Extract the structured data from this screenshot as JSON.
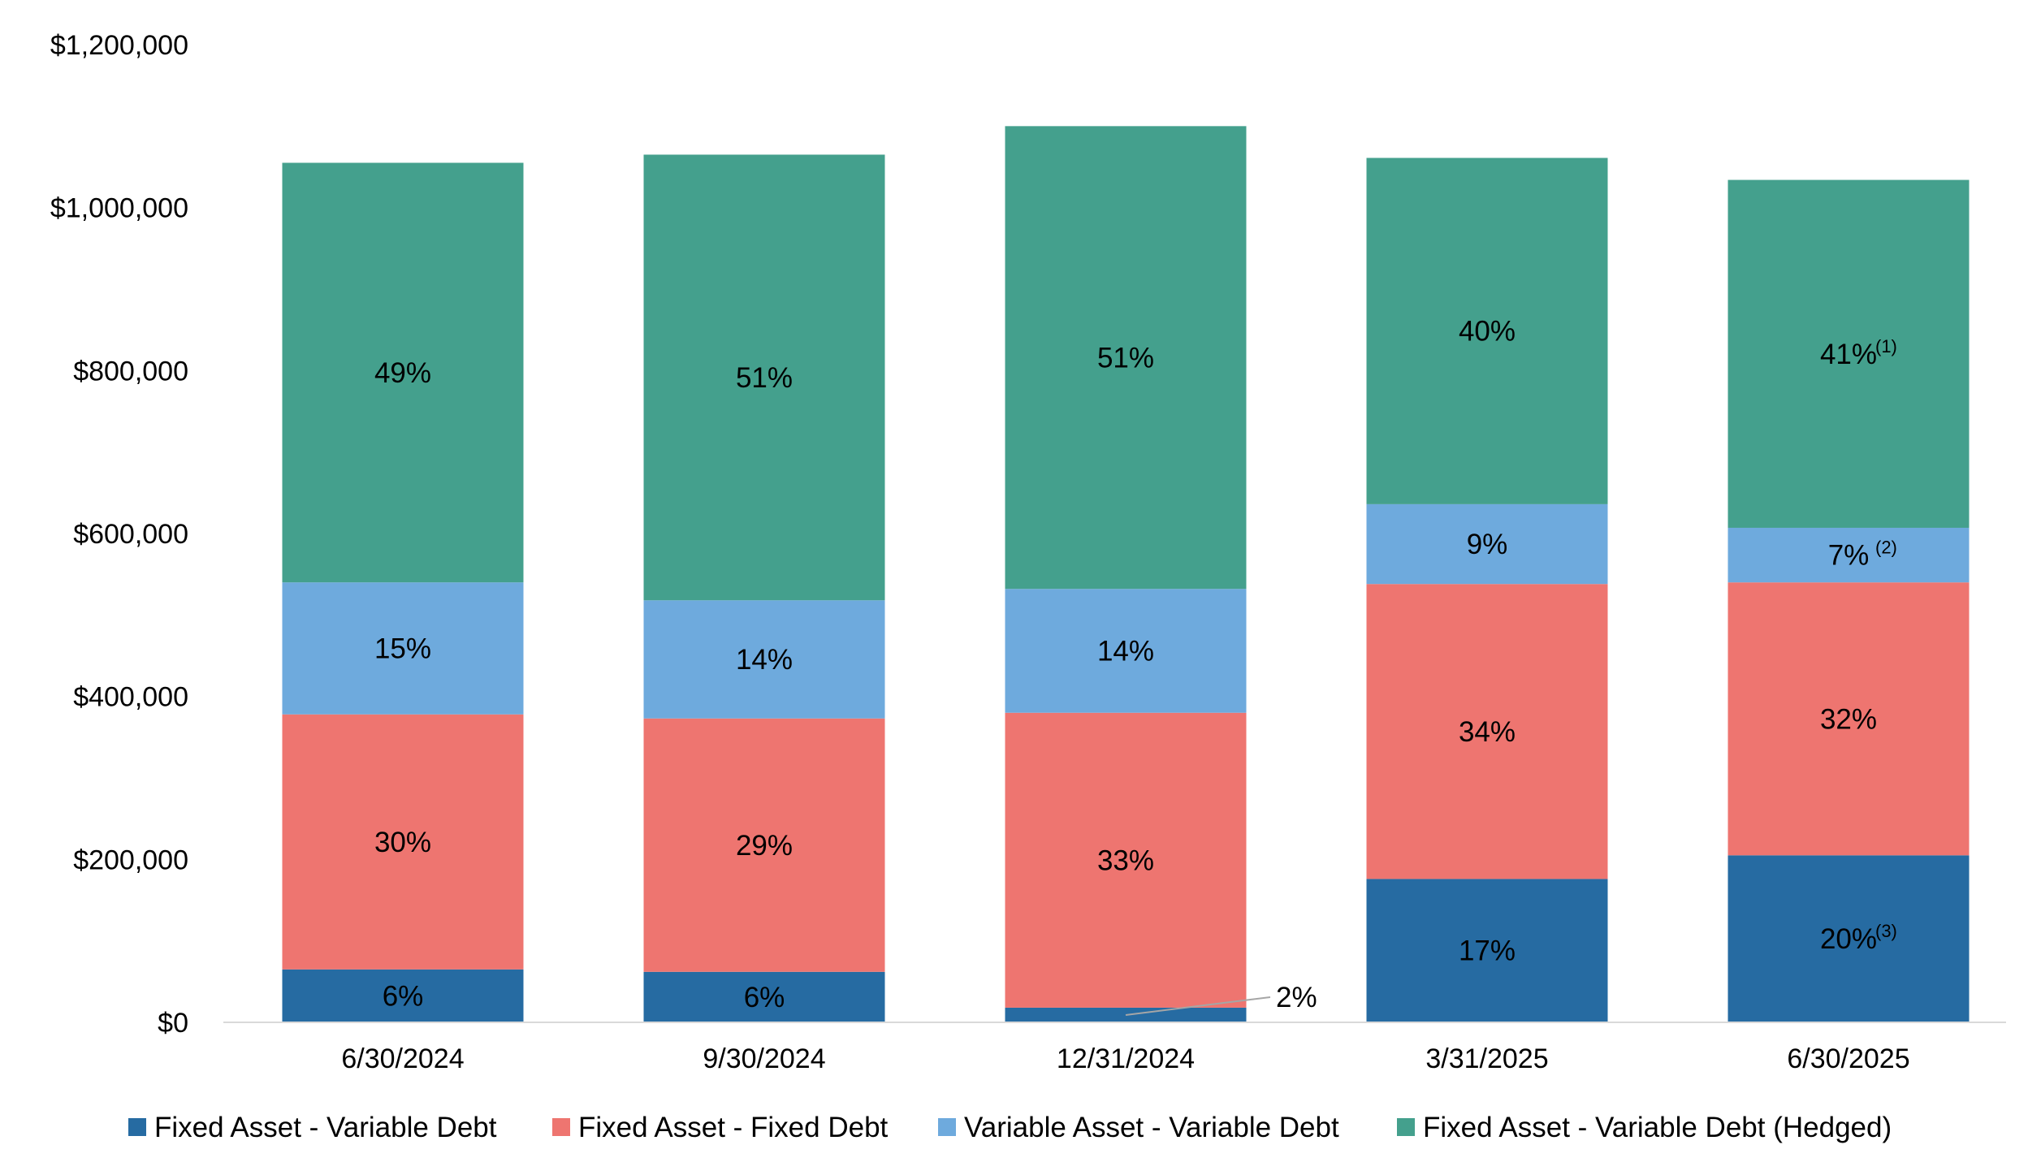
{
  "chart_data": {
    "type": "bar",
    "stacked": true,
    "title": "",
    "xlabel": "",
    "ylabel": "",
    "ylim": [
      0,
      1200000
    ],
    "yticks": [
      0,
      200000,
      400000,
      600000,
      800000,
      1000000,
      1200000
    ],
    "ytick_labels": [
      "$0",
      "$200,000",
      "$400,000",
      "$600,000",
      "$800,000",
      "$1,000,000",
      "$1,200,000"
    ],
    "grid": false,
    "legend_position": "bottom",
    "categories": [
      "6/30/2024",
      "9/30/2024",
      "12/31/2024",
      "3/31/2025",
      "6/30/2025"
    ],
    "series": [
      {
        "name": "Fixed Asset - Variable Debt",
        "color": "#266ba2",
        "values": [
          65000,
          62000,
          18000,
          176000,
          205000
        ],
        "labels": [
          "6%",
          "6%",
          "2%",
          "17%",
          "20%"
        ],
        "notes": [
          "",
          "",
          "",
          "",
          "(3)"
        ]
      },
      {
        "name": "Fixed Asset - Fixed Debt",
        "color": "#ee7570",
        "values": [
          313000,
          311000,
          362000,
          362000,
          335000
        ],
        "labels": [
          "30%",
          "29%",
          "33%",
          "34%",
          "32%"
        ],
        "notes": [
          "",
          "",
          "",
          "",
          ""
        ]
      },
      {
        "name": "Variable Asset - Variable Debt",
        "color": "#6eaadd",
        "values": [
          162000,
          145000,
          152000,
          98000,
          67000
        ],
        "labels": [
          "15%",
          "14%",
          "14%",
          "9%",
          "7%"
        ],
        "notes": [
          "",
          "",
          "",
          "",
          "(2)"
        ]
      },
      {
        "name": "Fixed Asset - Variable Debt (Hedged)",
        "color": "#44a08d",
        "values": [
          515000,
          547000,
          568000,
          425000,
          427000
        ],
        "labels": [
          "49%",
          "51%",
          "51%",
          "40%",
          "41%"
        ],
        "notes": [
          "",
          "",
          "",
          "",
          "(1)"
        ]
      }
    ],
    "callouts": [
      {
        "category_index": 2,
        "series_index": 0,
        "label": "2%"
      }
    ]
  }
}
